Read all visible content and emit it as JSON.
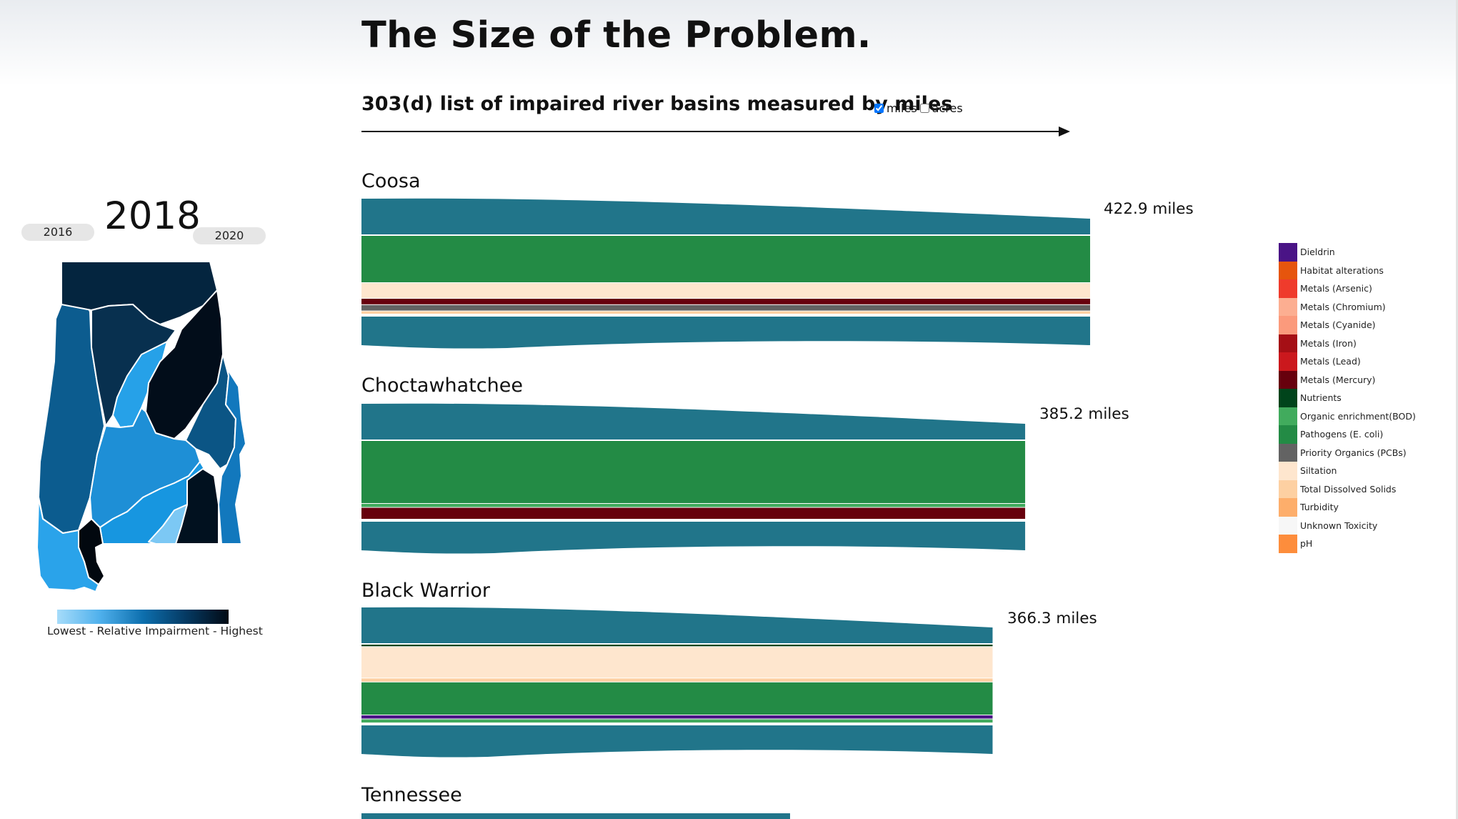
{
  "page": {
    "title": "The Size of the Problem.",
    "subtitle": "303(d) list of impaired river basins measured by miles",
    "units": [
      {
        "label": "miles",
        "checked": true
      },
      {
        "label": "acres",
        "checked": false
      }
    ]
  },
  "map_panel": {
    "prev_year": "2016",
    "current_year": "2018",
    "next_year": "2020",
    "gradient_label": "Lowest - Relative Impairment - Highest",
    "colors": {
      "lowest": "#a6dcfa",
      "highest": "#020a14"
    }
  },
  "legend": [
    {
      "label": "Dieldrin",
      "color": "#4a1486"
    },
    {
      "label": "Habitat alterations",
      "color": "#e6550d"
    },
    {
      "label": "Metals (Arsenic)",
      "color": "#ef3b2c"
    },
    {
      "label": "Metals (Chromium)",
      "color": "#fcae91"
    },
    {
      "label": "Metals (Cyanide)",
      "color": "#fb9a7c"
    },
    {
      "label": "Metals (Iron)",
      "color": "#a50f15"
    },
    {
      "label": "Metals (Lead)",
      "color": "#cb181d"
    },
    {
      "label": "Metals (Mercury)",
      "color": "#67000d"
    },
    {
      "label": "Nutrients",
      "color": "#00441b"
    },
    {
      "label": "Organic enrichment(BOD)",
      "color": "#41ab5d"
    },
    {
      "label": "Pathogens (E. coli)",
      "color": "#238b45"
    },
    {
      "label": "Priority Organics (PCBs)",
      "color": "#636363"
    },
    {
      "label": "Siltation",
      "color": "#fee6ce"
    },
    {
      "label": "Total Dissolved Solids",
      "color": "#fdd0a2"
    },
    {
      "label": "Turbidity",
      "color": "#fdae6b"
    },
    {
      "label": "Unknown Toxicity",
      "color": "#f7f7f7"
    },
    {
      "label": "pH",
      "color": "#fd8d3c"
    }
  ],
  "chart_data": {
    "type": "bar",
    "orientation": "horizontal",
    "value_unit": "miles",
    "flow_color": "#21758a",
    "basins": [
      {
        "name": "Coosa",
        "total_label": "422.9 miles",
        "total": 422.9,
        "segments": [
          {
            "cause": "Pathogens (E. coli)",
            "share": 0.6
          },
          {
            "cause": "Siltation",
            "share": 0.2
          },
          {
            "cause": "Metals (Mercury)",
            "share": 0.08
          },
          {
            "cause": "Priority Organics (PCBs)",
            "share": 0.08
          },
          {
            "cause": "Total Dissolved Solids",
            "share": 0.04
          }
        ]
      },
      {
        "name": "Choctawhatchee",
        "total_label": "385.2 miles",
        "total": 385.2,
        "segments": [
          {
            "cause": "Pathogens (E. coli)",
            "share": 0.8
          },
          {
            "cause": "Organic enrichment(BOD)",
            "share": 0.05
          },
          {
            "cause": "Metals (Mercury)",
            "share": 0.15
          }
        ]
      },
      {
        "name": "Black Warrior",
        "total_label": "366.3 miles",
        "total": 366.3,
        "segments": [
          {
            "cause": "Nutrients",
            "share": 0.03
          },
          {
            "cause": "Siltation",
            "share": 0.4
          },
          {
            "cause": "Total Dissolved Solids",
            "share": 0.05
          },
          {
            "cause": "Pathogens (E. coli)",
            "share": 0.42
          },
          {
            "cause": "Dieldrin",
            "share": 0.05
          },
          {
            "cause": "Organic enrichment(BOD)",
            "share": 0.05
          }
        ]
      },
      {
        "name": "Tennessee",
        "total_label": "",
        "total": null,
        "segments": []
      }
    ]
  }
}
